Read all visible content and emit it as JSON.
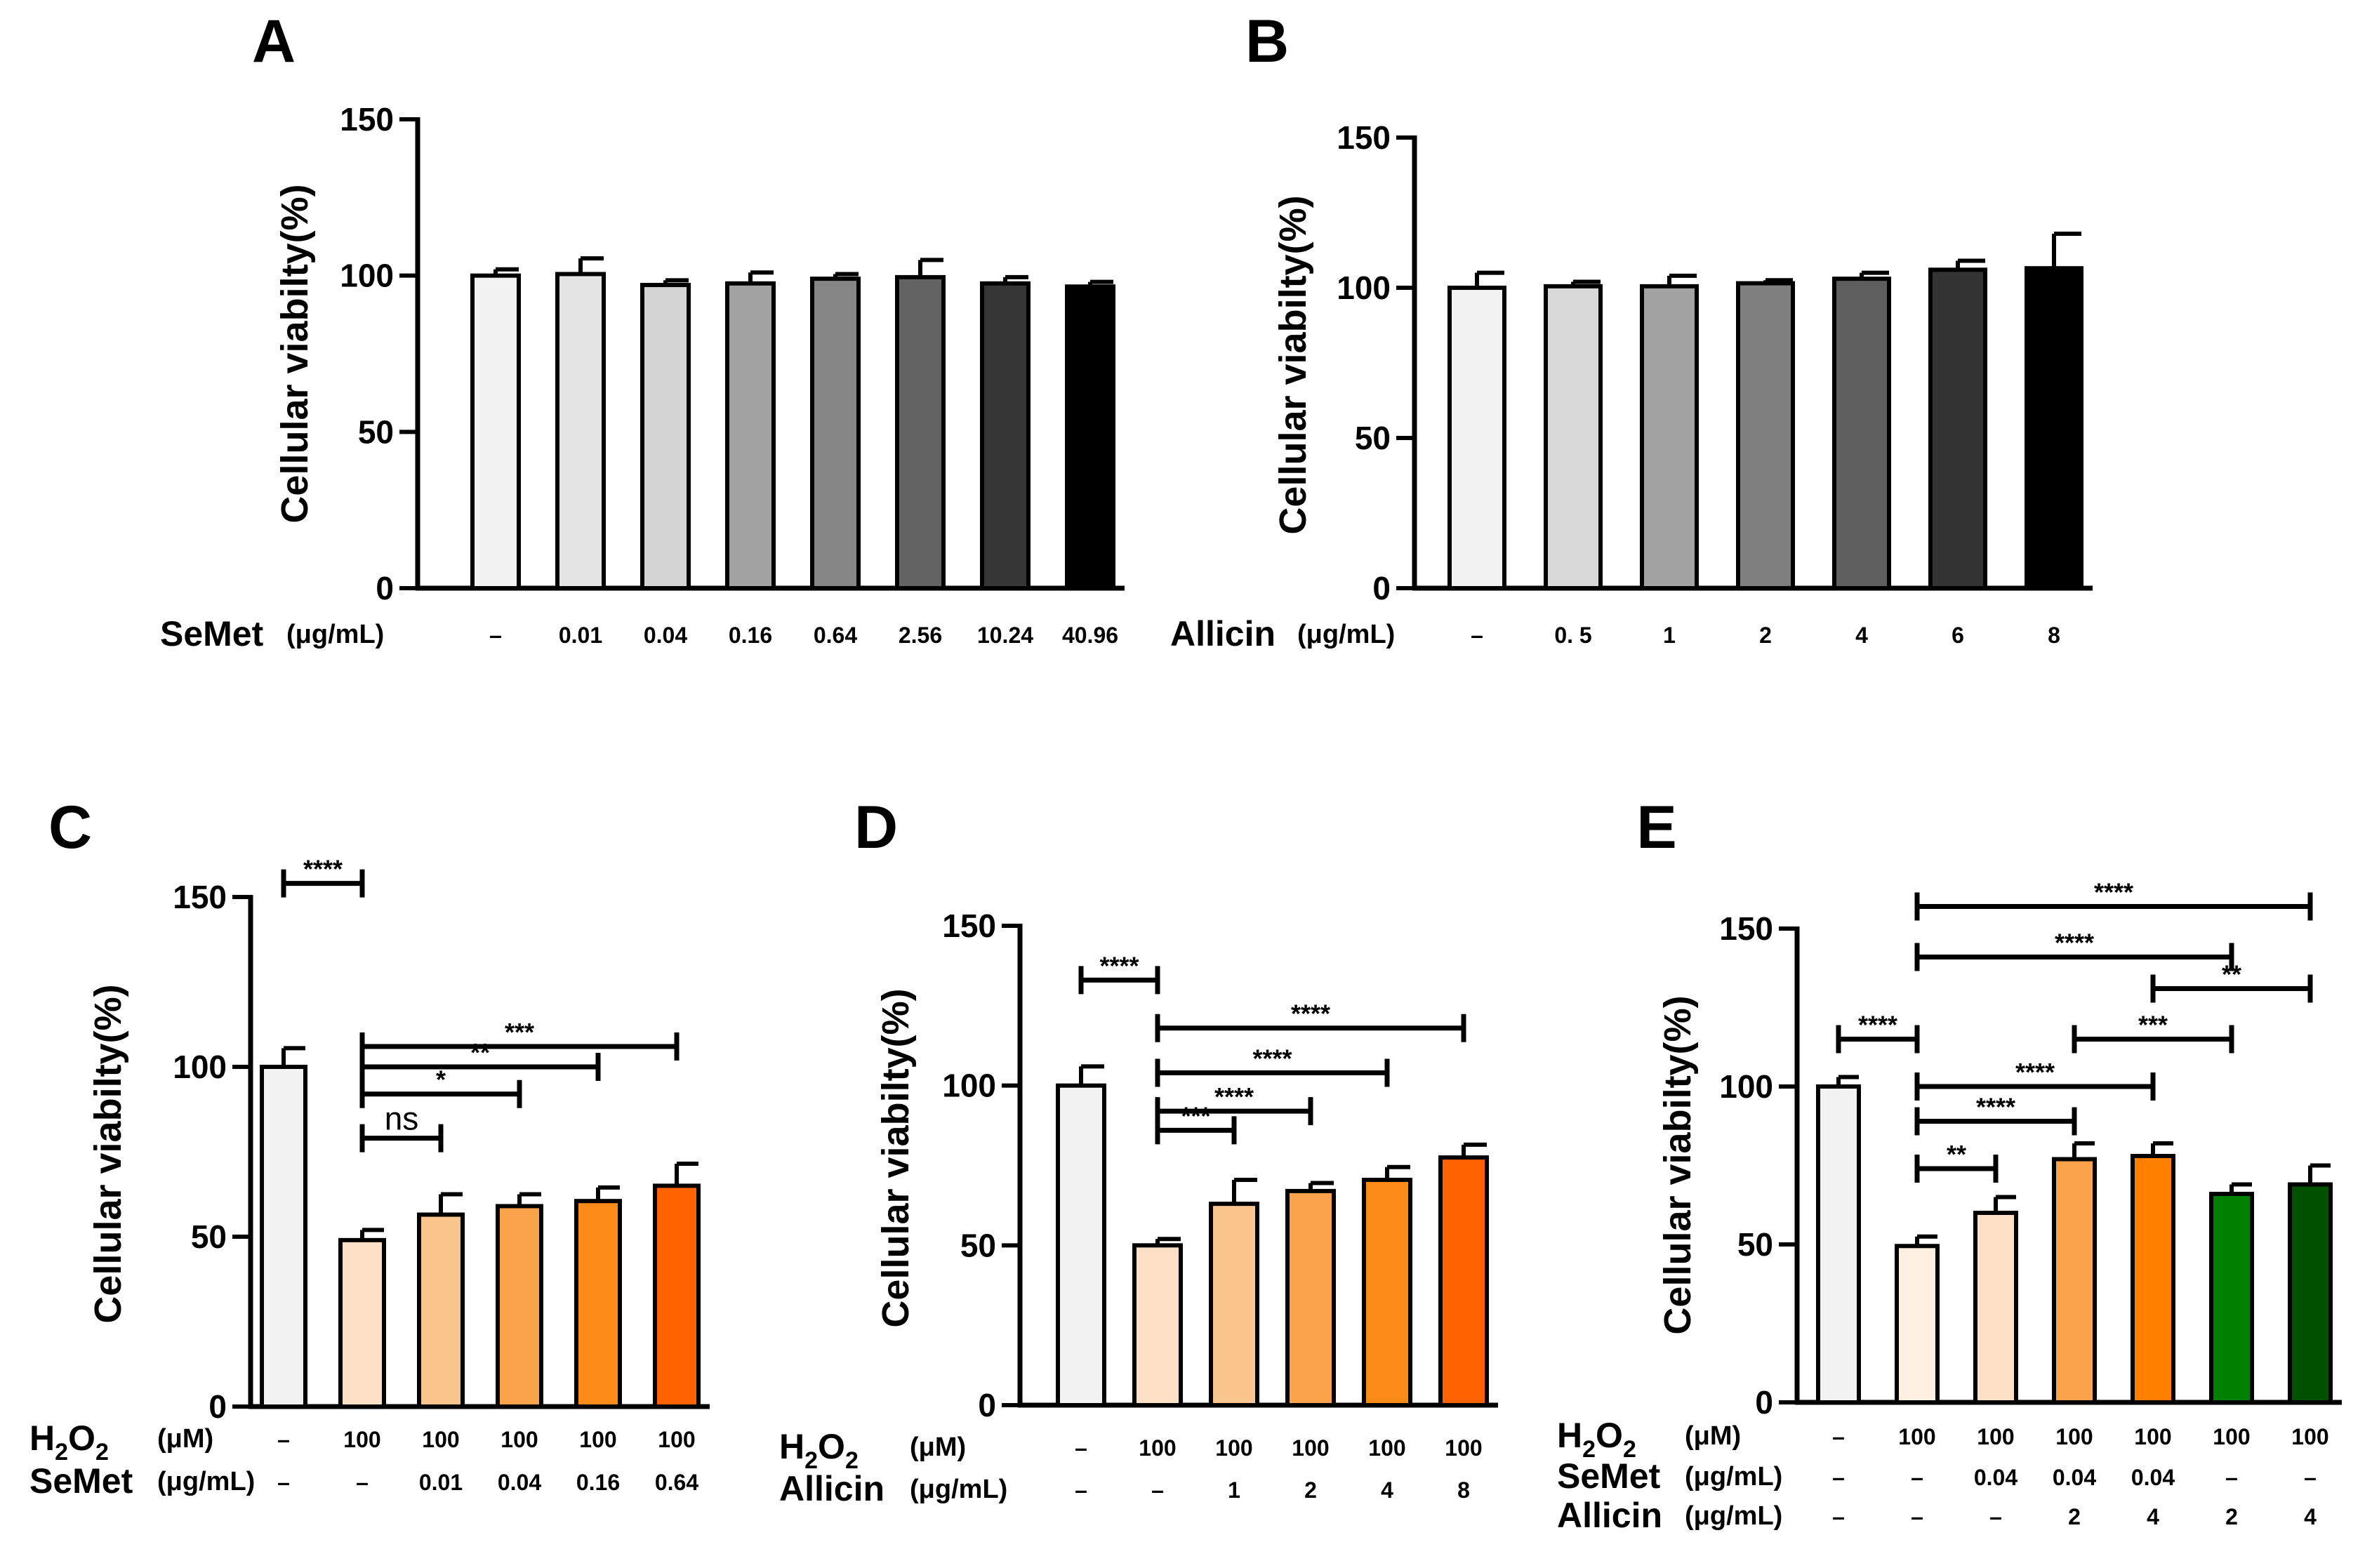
{
  "chart_data": [
    {
      "id": "A",
      "type": "bar",
      "panel_label": "A",
      "ylabel": "Cellular viabilty(%)",
      "ylim": [
        0,
        150
      ],
      "yticks": [
        "0",
        "50",
        "100",
        "150"
      ],
      "values": [
        100,
        100.5,
        97,
        97.5,
        99,
        99.5,
        97.5,
        96.5
      ],
      "errors": [
        2,
        5,
        1.5,
        3.5,
        1.5,
        5.5,
        2,
        1.5
      ],
      "colors": [
        "#f2f2f2",
        "#e4e4e4",
        "#d4d4d4",
        "#a3a3a3",
        "#858585",
        "#636363",
        "#363636",
        "#000000"
      ],
      "rows": [
        {
          "label": "SeMet",
          "unit": "(μg/mL)",
          "values": [
            "–",
            "0.01",
            "0.04",
            "0.16",
            "0.64",
            "2.56",
            "10.24",
            "40.96"
          ]
        }
      ],
      "significance": []
    },
    {
      "id": "B",
      "type": "bar",
      "panel_label": "B",
      "ylabel": "Cellular viabilty(%)",
      "ylim": [
        0,
        150
      ],
      "yticks": [
        "0",
        "50",
        "100",
        "150"
      ],
      "values": [
        100,
        100.5,
        100.5,
        101.5,
        103,
        106,
        106.5
      ],
      "errors": [
        5,
        1.5,
        3.5,
        1,
        2,
        3,
        11.5
      ],
      "colors": [
        "#f2f2f2",
        "#d9d9d9",
        "#a3a3a3",
        "#7f7f7f",
        "#5f5f5f",
        "#333333",
        "#000000"
      ],
      "rows": [
        {
          "label": "Allicin",
          "unit": "(μg/mL)",
          "values": [
            "–",
            "0. 5",
            "1",
            "2",
            "4",
            "6",
            "8"
          ]
        }
      ],
      "significance": []
    },
    {
      "id": "C",
      "type": "bar",
      "panel_label": "C",
      "ylabel": "Cellular viabilty(%)",
      "ylim": [
        0,
        150
      ],
      "yticks": [
        "0",
        "50",
        "100",
        "150"
      ],
      "values": [
        100,
        49,
        56.5,
        59,
        60.5,
        65
      ],
      "errors": [
        5.5,
        3,
        6,
        3.5,
        4,
        6.5
      ],
      "colors": [
        "#f2f2f2",
        "#fde0c5",
        "#fbc58e",
        "#fba34a",
        "#fb8a17",
        "#ff6200"
      ],
      "rows": [
        {
          "label": "H2O2",
          "unit": "(μM)",
          "values": [
            "–",
            "100",
            "100",
            "100",
            "100",
            "100"
          ]
        },
        {
          "label": "SeMet",
          "unit": "(μg/mL)",
          "values": [
            "–",
            "–",
            "0.01",
            "0.04",
            "0.16",
            "0.64"
          ]
        }
      ],
      "significance": [
        {
          "from": 0,
          "to": 1,
          "label": "****",
          "y": 154
        },
        {
          "from": 1,
          "to": 2,
          "label": "ns",
          "y": 79
        },
        {
          "from": 1,
          "to": 3,
          "label": "*",
          "y": 92
        },
        {
          "from": 1,
          "to": 4,
          "label": "**",
          "y": 100
        },
        {
          "from": 1,
          "to": 5,
          "label": "***",
          "y": 106
        }
      ]
    },
    {
      "id": "D",
      "type": "bar",
      "panel_label": "D",
      "ylabel": "Cellular viabilty(%)",
      "ylim": [
        0,
        150
      ],
      "yticks": [
        "0",
        "50",
        "100",
        "150"
      ],
      "values": [
        100,
        50,
        63,
        67,
        70.5,
        77.5
      ],
      "errors": [
        6,
        2,
        7.5,
        2.5,
        4,
        4
      ],
      "colors": [
        "#f2f2f2",
        "#fde0c5",
        "#fbc58e",
        "#fba34a",
        "#fb8a17",
        "#ff6200"
      ],
      "rows": [
        {
          "label": "H2O2",
          "unit": "(μM)",
          "values": [
            "–",
            "100",
            "100",
            "100",
            "100",
            "100"
          ]
        },
        {
          "label": "Allicin",
          "unit": "(μg/mL)",
          "values": [
            "–",
            "–",
            "1",
            "2",
            "4",
            "8"
          ]
        }
      ],
      "significance": [
        {
          "from": 0,
          "to": 1,
          "label": "****",
          "y": 133
        },
        {
          "from": 1,
          "to": 2,
          "label": "***",
          "y": 86
        },
        {
          "from": 1,
          "to": 3,
          "label": "****",
          "y": 92
        },
        {
          "from": 1,
          "to": 4,
          "label": "****",
          "y": 104
        },
        {
          "from": 1,
          "to": 5,
          "label": "****",
          "y": 118
        }
      ]
    },
    {
      "id": "E",
      "type": "bar",
      "panel_label": "E",
      "ylabel": "Cellular viabilty(%)",
      "ylim": [
        0,
        150
      ],
      "yticks": [
        "0",
        "50",
        "100",
        "150"
      ],
      "values": [
        100,
        49.5,
        60,
        77,
        78,
        66,
        69
      ],
      "errors": [
        3,
        3,
        5,
        5,
        4,
        3,
        6
      ],
      "colors": [
        "#f2f2f2",
        "#fff0e1",
        "#fde0c5",
        "#fba34a",
        "#ff8000",
        "#008000",
        "#005000"
      ],
      "rows": [
        {
          "label": "H2O2",
          "unit": "(μM)",
          "values": [
            "–",
            "100",
            "100",
            "100",
            "100",
            "100",
            "100"
          ]
        },
        {
          "label": "SeMet",
          "unit": "(μg/mL)",
          "values": [
            "–",
            "–",
            "0.04",
            "0.04",
            "0.04",
            "–",
            "–"
          ]
        },
        {
          "label": "Allicin",
          "unit": "(μg/mL)",
          "values": [
            "–",
            "–",
            "–",
            "2",
            "4",
            "2",
            "4"
          ]
        }
      ],
      "significance": [
        {
          "from": 1,
          "to": 6,
          "label": "****",
          "y": 157
        },
        {
          "from": 1,
          "to": 5,
          "label": "****",
          "y": 141
        },
        {
          "from": 4,
          "to": 6,
          "label": "**",
          "y": 131
        },
        {
          "from": 0,
          "to": 1,
          "label": "****",
          "y": 115
        },
        {
          "from": 3,
          "to": 5,
          "label": "***",
          "y": 115
        },
        {
          "from": 1,
          "to": 4,
          "label": "****",
          "y": 100
        },
        {
          "from": 1,
          "to": 3,
          "label": "****",
          "y": 89
        },
        {
          "from": 1,
          "to": 2,
          "label": "**",
          "y": 74
        }
      ]
    }
  ]
}
